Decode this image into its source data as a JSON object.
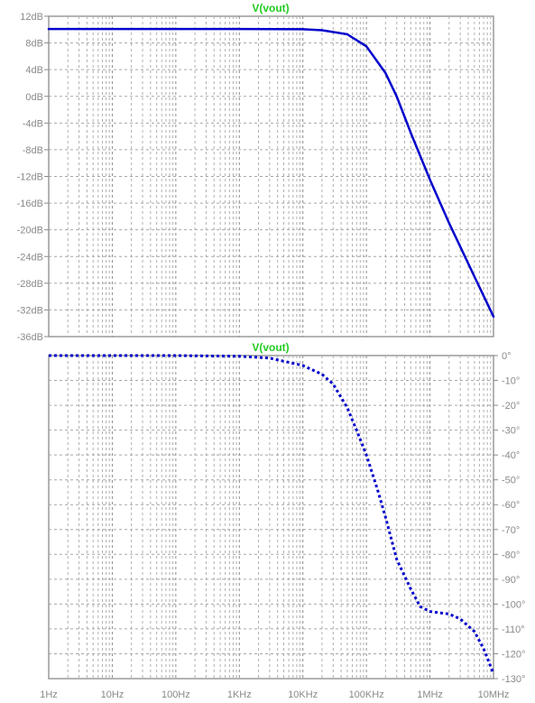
{
  "chart_data": [
    {
      "type": "line",
      "title": "V(vout)",
      "xscale": "log",
      "xlim": [
        1,
        10000000
      ],
      "ylim": [
        -36,
        12
      ],
      "yunit": "dB",
      "grid": true,
      "grid_style": "dashed",
      "line_style": "solid",
      "color": "#0000cc",
      "yticks": [
        "12dB",
        "8dB",
        "4dB",
        "0dB",
        "-4dB",
        "-8dB",
        "-12dB",
        "-16dB",
        "-20dB",
        "-24dB",
        "-28dB",
        "-32dB",
        "-36dB"
      ],
      "ytick_values": [
        12,
        8,
        4,
        0,
        -4,
        -8,
        -12,
        -16,
        -20,
        -24,
        -28,
        -32,
        -36
      ],
      "ytick_side": "left",
      "x": [
        1,
        10,
        100,
        1000,
        10000,
        20000,
        50000,
        100000,
        200000,
        300000,
        500000,
        1000000,
        2000000,
        5000000,
        10000000
      ],
      "y": [
        10.1,
        10.1,
        10.1,
        10.1,
        10.05,
        9.9,
        9.3,
        7.5,
        3.5,
        0,
        -5.5,
        -12.5,
        -19,
        -27,
        -33
      ]
    },
    {
      "type": "line",
      "title": "V(vout)",
      "xscale": "log",
      "xlim": [
        1,
        10000000
      ],
      "ylim": [
        -130,
        0
      ],
      "yunit": "°",
      "grid": true,
      "grid_style": "dashed",
      "line_style": "dotted",
      "color": "#0000cc",
      "yticks": [
        "0°",
        "-10°",
        "-20°",
        "-30°",
        "-40°",
        "-50°",
        "-60°",
        "-70°",
        "-80°",
        "-90°",
        "-100°",
        "-110°",
        "-120°",
        "-130°"
      ],
      "ytick_values": [
        0,
        -10,
        -20,
        -30,
        -40,
        -50,
        -60,
        -70,
        -80,
        -90,
        -100,
        -110,
        -120,
        -130
      ],
      "ytick_side": "right",
      "xticks": [
        "1Hz",
        "10Hz",
        "100Hz",
        "1KHz",
        "10KHz",
        "100KHz",
        "1MHz",
        "10MHz"
      ],
      "xtick_values": [
        1,
        10,
        100,
        1000,
        10000,
        100000,
        1000000,
        10000000
      ],
      "x": [
        1,
        100,
        1000,
        3000,
        10000,
        20000,
        30000,
        50000,
        70000,
        100000,
        150000,
        200000,
        300000,
        500000,
        700000,
        1000000,
        2000000,
        3000000,
        5000000,
        7000000,
        10000000
      ],
      "y": [
        0,
        0,
        -0.3,
        -1,
        -4,
        -7.5,
        -11.5,
        -21,
        -30,
        -40,
        -54,
        -65,
        -82,
        -94,
        -101,
        -103,
        -104,
        -106,
        -111,
        -118,
        -128
      ]
    }
  ]
}
